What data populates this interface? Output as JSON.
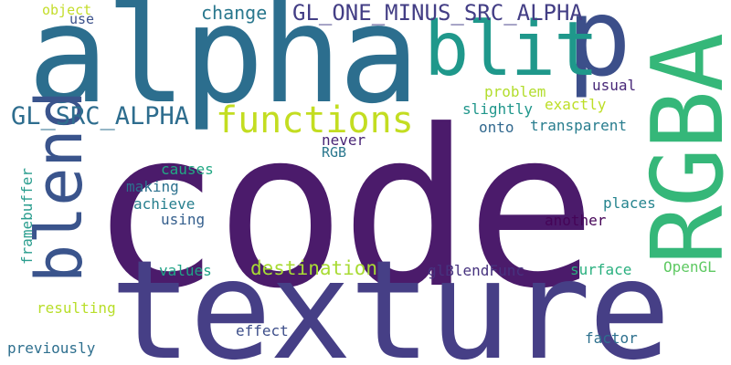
{
  "word_cloud": {
    "words": {
      "code": "code",
      "texture": "texture",
      "alpha": "alpha",
      "rgba": "RGBA",
      "p": "p",
      "blit": "blit",
      "blend": "blend",
      "functions": "functions",
      "gl_src_alpha": "GL_SRC_ALPHA",
      "gl_one_minus_src_alpha": "GL_ONE_MINUS_SRC_ALPHA",
      "change": "change",
      "destination": "destination",
      "object": "object",
      "use": "use",
      "problem": "problem",
      "exactly": "exactly",
      "usual": "usual",
      "slightly": "slightly",
      "transparent": "transparent",
      "onto": "onto",
      "never": "never",
      "rgb": "RGB",
      "causes": "causes",
      "making": "making",
      "achieve": "achieve",
      "using": "using",
      "another": "another",
      "places": "places",
      "values": "values",
      "glblendfunc": "glBlendFunc",
      "surface": "surface",
      "opengl": "OpenGL",
      "resulting": "resulting",
      "effect": "effect",
      "factor": "factor",
      "previously": "previously",
      "framebuffer": "framebuffer"
    }
  }
}
